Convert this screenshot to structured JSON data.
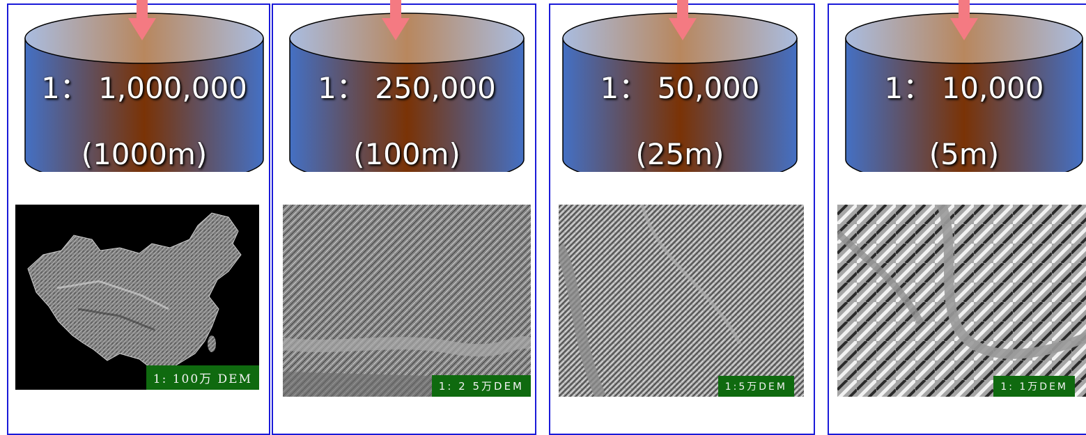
{
  "levels": [
    {
      "scale": "1： 1,000,000",
      "resolution": "(1000m)",
      "dem_label": "1: 100万 DEM"
    },
    {
      "scale": "1： 250,000",
      "resolution": "(100m)",
      "dem_label": "1: 2 5万DEM"
    },
    {
      "scale": "1： 50,000",
      "resolution": "(25m)",
      "dem_label": "1:5万DEM"
    },
    {
      "scale": "1： 10,000",
      "resolution": "(5m)",
      "dem_label": "1: 1万DEM"
    }
  ],
  "colors": {
    "panel_border": "#1a1ad9",
    "cylinder_blue": "#4470c4",
    "cylinder_brown": "#7a3306",
    "arrow": "#f47a82",
    "label_bg": "#0f6a0f"
  }
}
